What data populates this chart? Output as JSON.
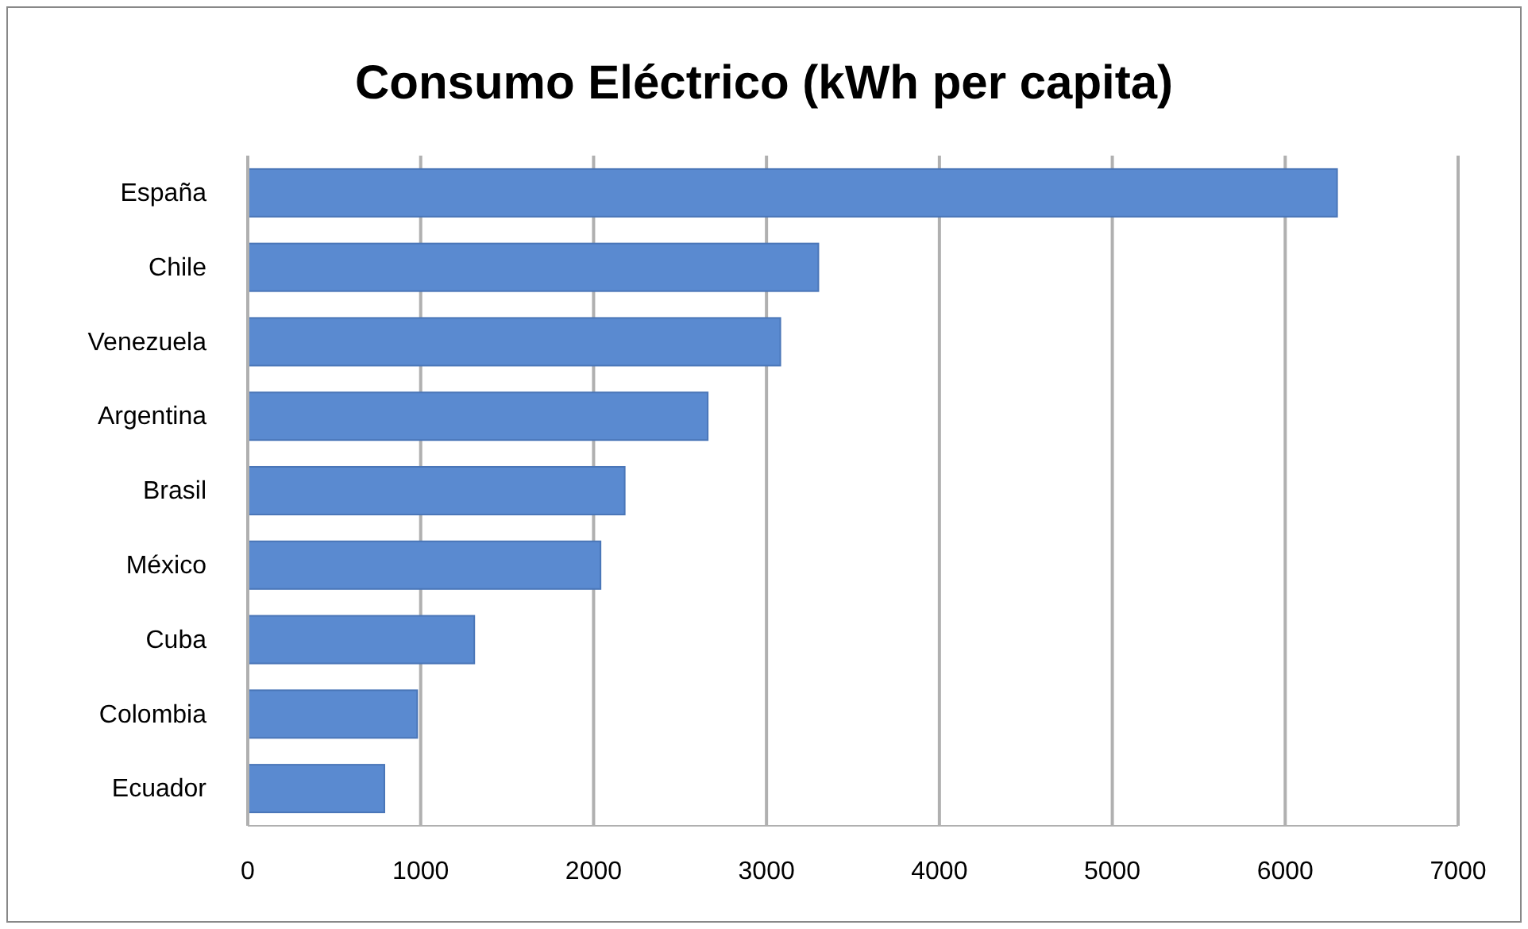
{
  "chart_data": {
    "type": "bar",
    "orientation": "horizontal",
    "title": "Consumo Eléctrico (kWh per capita)",
    "categories": [
      "España",
      "Chile",
      "Venezuela",
      "Argentina",
      "Brasil",
      "México",
      "Cuba",
      "Colombia",
      "Ecuador"
    ],
    "values": [
      6300,
      3300,
      3080,
      2660,
      2180,
      2040,
      1310,
      980,
      790
    ],
    "color": "#5a8ad0",
    "xlim": [
      0,
      7000
    ],
    "xticks": [
      0,
      1000,
      2000,
      3000,
      4000,
      5000,
      6000,
      7000
    ],
    "grid": "x"
  }
}
